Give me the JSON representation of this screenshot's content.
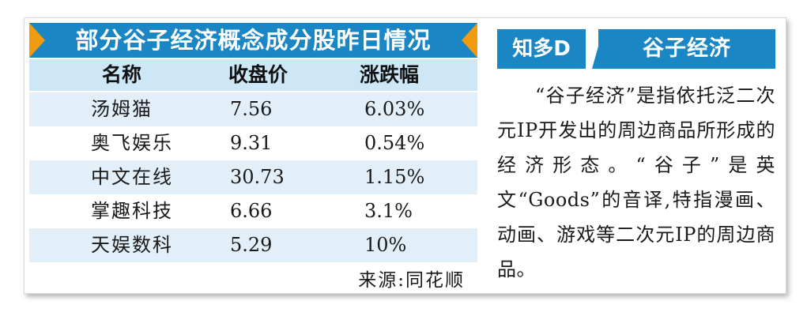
{
  "table": {
    "title": "部分谷子经济概念成分股昨日情况",
    "headers": {
      "name": "名称",
      "close": "收盘价",
      "change": "涨跌幅"
    },
    "rows": [
      {
        "name": "汤姆猫",
        "close": "7.56",
        "change": "6.03%"
      },
      {
        "name": "奥飞娱乐",
        "close": "9.31",
        "change": "0.54%"
      },
      {
        "name": "中文在线",
        "close": "30.73",
        "change": "1.15%"
      },
      {
        "name": "掌趣科技",
        "close": "6.66",
        "change": "3.1%"
      },
      {
        "name": "天娱数科",
        "close": "5.29",
        "change": "10%"
      }
    ],
    "source": "来源:同花顺"
  },
  "sidebar": {
    "tag": "知多D",
    "topic": "谷子经济",
    "body": "“谷子经济”是指依托泛二次元IP开发出的周边商品所形成的经济形态。“谷子”是英文“Goods”的音译,特指漫画、动画、游戏等二次元IP的周边商品。"
  },
  "colors": {
    "title_blue": "#1a86c4",
    "accent_orange": "#f29b11",
    "header_light_blue": "#cde7f7",
    "row_shade": "#e2eff9"
  }
}
